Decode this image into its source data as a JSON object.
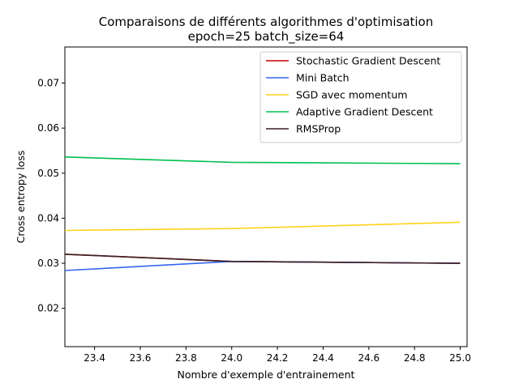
{
  "chart_data": {
    "type": "line",
    "title": "Comparaisons de différents algorithmes d'optimisation",
    "subtitle": "epoch=25 batch_size=64",
    "xlabel": "Nombre d'exemple d'entrainement",
    "ylabel": "Cross entropy loss",
    "xlim": [
      23.27,
      25.03
    ],
    "ylim": [
      0.0115,
      0.078
    ],
    "xticks": [
      "23.4",
      "23.6",
      "23.8",
      "24.0",
      "24.2",
      "24.4",
      "24.6",
      "24.8",
      "25.0"
    ],
    "yticks": [
      "0.02",
      "0.03",
      "0.04",
      "0.05",
      "0.06",
      "0.07"
    ],
    "grid": false,
    "legend_position": "top-right",
    "series": [
      {
        "name": "Stochastic Gradient Descent",
        "color": "#c00000",
        "x": [
          23.27,
          24.0,
          25.0
        ],
        "y": [
          0.032,
          0.0304,
          0.03
        ]
      },
      {
        "name": "Mini Batch",
        "color": "#3366ee",
        "x": [
          23.27,
          24.0,
          25.0
        ],
        "y": [
          0.0284,
          0.0304,
          0.03
        ]
      },
      {
        "name": "SGD avec momentum",
        "color": "#ffd21a",
        "x": [
          23.27,
          24.0,
          25.0
        ],
        "y": [
          0.0373,
          0.0377,
          0.0391
        ]
      },
      {
        "name": "Adaptive Gradient Descent",
        "color": "#00c050",
        "x": [
          23.27,
          24.0,
          25.0
        ],
        "y": [
          0.0536,
          0.0524,
          0.0521
        ]
      },
      {
        "name": "RMSProp",
        "color": "#3a1f22",
        "x": [
          23.27,
          24.0,
          25.0
        ],
        "y": [
          0.032,
          0.0304,
          0.03
        ]
      }
    ]
  }
}
